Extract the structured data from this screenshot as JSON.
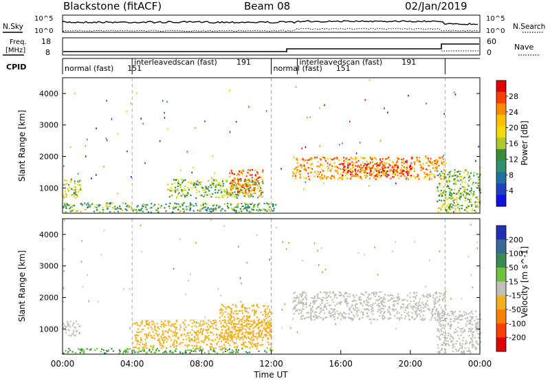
{
  "header": {
    "station": "Blackstone",
    "fit": "(fitACF)",
    "beam": "Beam 08",
    "date": "02/Jan/2019"
  },
  "noise_panel": {
    "left_label": "N.Sky",
    "right_label": "N.Search",
    "left_ticks": [
      "10^5",
      "10^0"
    ],
    "right_ticks": [
      "10^5",
      "10^0"
    ]
  },
  "freq_panel": {
    "left_label_line1": "Freq.",
    "left_label_line2": "[MHz]",
    "right_label": "Nave",
    "left_ticks": [
      "18",
      "8"
    ],
    "right_ticks": [
      "60",
      "0"
    ]
  },
  "cpid": {
    "label": "CPID",
    "segments": [
      {
        "text": "normal (fast)",
        "id": "151",
        "start_hour": 0,
        "end_hour": 4
      },
      {
        "text": "interleavedscan (fast)",
        "id": "191",
        "start_hour": 4,
        "end_hour": 12
      },
      {
        "text": "normal (fast)",
        "id": "151",
        "start_hour": 12,
        "end_hour": 13.5
      },
      {
        "text": "interleavedscan (fast)",
        "id": "191",
        "start_hour": 13.5,
        "end_hour": 22
      },
      {
        "text": "",
        "id": "",
        "start_hour": 22,
        "end_hour": 24
      }
    ]
  },
  "power_panel": {
    "ylabel": "Slant Range [km]",
    "cbar_label": "Power [dB]",
    "cbar_ticks": [
      "28",
      "24",
      "20",
      "16",
      "12",
      "8",
      "4"
    ],
    "cbar_colors": [
      "#e00000",
      "#ff4000",
      "#ff8a00",
      "#ffc000",
      "#f4d800",
      "#b0c830",
      "#3a8a3a",
      "#309070",
      "#2070a0",
      "#2040c0",
      "#1010e0"
    ]
  },
  "velocity_panel": {
    "ylabel": "Slant Range [km]",
    "cbar_label": "Velocity [m s^-1]",
    "cbar_ticks": [
      "200",
      "100",
      "50",
      "15",
      "-15",
      "-50",
      "-100",
      "-200"
    ],
    "cbar_colors": [
      "#2030b0",
      "#3a6a9a",
      "#3a8a50",
      "#70c040",
      "#c0c0b8",
      "#f0b020",
      "#ff8000",
      "#ff4000",
      "#e00000"
    ]
  },
  "x_axis": {
    "title": "Time UT",
    "ticks": [
      "00:00",
      "04:00",
      "08:00",
      "12:00",
      "16:00",
      "20:00",
      "00:00"
    ]
  },
  "chart_data": [
    {
      "type": "heatmap",
      "title": "Power",
      "xlabel": "Time UT",
      "ylabel": "Slant Range [km]",
      "xlim": [
        0,
        24
      ],
      "ylim": [
        200,
        4500
      ],
      "yticks": [
        1000,
        2000,
        3000,
        4000
      ],
      "colorbar": {
        "label": "Power [dB]",
        "range": [
          0,
          30
        ],
        "ticks": [
          4,
          8,
          12,
          16,
          20,
          24,
          28
        ]
      },
      "echo_regions": [
        {
          "t0": 0.0,
          "t1": 1.0,
          "r0": 700,
          "r1": 1300,
          "level": 16
        },
        {
          "t0": 0.0,
          "t1": 12.3,
          "r0": 250,
          "r1": 550,
          "level": 12
        },
        {
          "t0": 6.0,
          "t1": 11.5,
          "r0": 700,
          "r1": 1300,
          "level": 14
        },
        {
          "t0": 9.5,
          "t1": 11.5,
          "r0": 800,
          "r1": 1600,
          "level": 24
        },
        {
          "t0": 13.2,
          "t1": 22.0,
          "r0": 1300,
          "r1": 2000,
          "level": 22
        },
        {
          "t0": 16.0,
          "t1": 20.0,
          "r0": 1400,
          "r1": 1800,
          "level": 26
        },
        {
          "t0": 21.5,
          "t1": 24.0,
          "r0": 250,
          "r1": 1600,
          "level": 14
        }
      ]
    },
    {
      "type": "heatmap",
      "title": "Velocity",
      "xlabel": "Time UT",
      "ylabel": "Slant Range [km]",
      "xlim": [
        0,
        24
      ],
      "ylim": [
        200,
        4500
      ],
      "yticks": [
        1000,
        2000,
        3000,
        4000
      ],
      "colorbar": {
        "label": "Velocity [m s^-1]",
        "range": [
          -250,
          250
        ],
        "ticks": [
          -200,
          -100,
          -50,
          -15,
          15,
          50,
          100,
          200
        ]
      },
      "echo_regions": [
        {
          "t0": 0.0,
          "t1": 1.0,
          "r0": 800,
          "r1": 1300,
          "level": 0
        },
        {
          "t0": 0.0,
          "t1": 12.3,
          "r0": 250,
          "r1": 400,
          "level": 30
        },
        {
          "t0": 4.0,
          "t1": 12.0,
          "r0": 400,
          "r1": 1300,
          "level": -40
        },
        {
          "t0": 9.0,
          "t1": 12.0,
          "r0": 700,
          "r1": 1800,
          "level": -40
        },
        {
          "t0": 13.2,
          "t1": 22.0,
          "r0": 1300,
          "r1": 2200,
          "level": 0
        },
        {
          "t0": 21.5,
          "t1": 24.0,
          "r0": 250,
          "r1": 1600,
          "level": 0
        }
      ]
    }
  ]
}
